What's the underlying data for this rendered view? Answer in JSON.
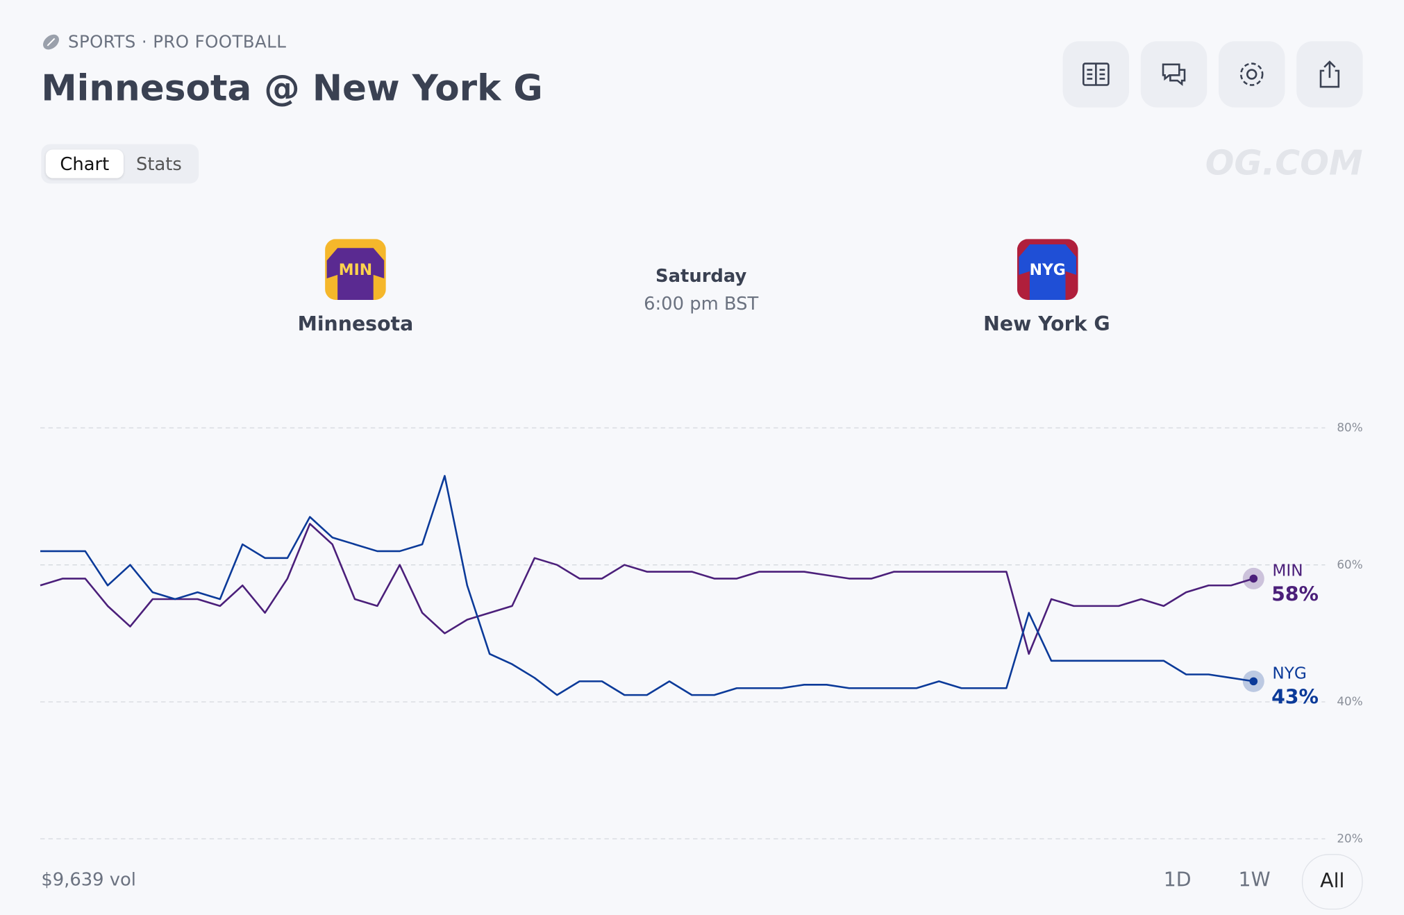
{
  "header": {
    "breadcrumb": "SPORTS · PRO FOOTBALL",
    "title": "Minnesota @ New York G",
    "watermark": "OG.COM"
  },
  "tabs": [
    "Chart",
    "Stats"
  ],
  "matchup": {
    "home": {
      "name": "Minnesota",
      "badge": "MIN"
    },
    "away": {
      "name": "New York G",
      "badge": "NYG"
    },
    "day": "Saturday",
    "time": "6:00 pm BST"
  },
  "chart_data": {
    "type": "line",
    "series": [
      {
        "name": "MIN",
        "color": "#4b1f7a",
        "values": [
          57,
          58,
          58,
          54,
          51,
          55,
          55,
          55,
          54,
          57,
          53,
          58,
          66,
          63,
          55,
          54,
          60,
          53,
          50,
          52,
          53,
          54,
          61,
          60,
          58,
          58,
          60,
          59,
          59,
          59,
          58,
          58,
          59,
          59,
          59,
          58.5,
          58,
          58,
          59,
          59,
          59,
          59,
          59,
          59,
          47,
          55,
          54,
          54,
          54,
          55,
          54,
          56,
          57,
          57,
          58
        ],
        "value_labels": [
          null,
          null,
          null,
          null,
          null,
          null,
          null,
          null,
          null,
          null,
          null,
          null,
          null,
          null,
          null,
          null,
          null,
          null,
          null,
          null,
          null,
          null,
          null,
          null,
          null,
          null,
          null,
          null,
          null,
          null,
          null,
          null,
          null,
          null,
          null,
          null,
          null,
          null,
          null,
          null,
          null,
          null,
          null,
          null,
          null,
          null,
          null,
          null,
          null,
          null,
          null,
          null,
          null,
          null,
          "58%"
        ]
      },
      {
        "name": "NYG",
        "color": "#0b3a99",
        "values": [
          62,
          62,
          62,
          57,
          60,
          56,
          55,
          56,
          55,
          63,
          61,
          61,
          67,
          64,
          63,
          62,
          62,
          63,
          73,
          57,
          47,
          45.5,
          43.5,
          41,
          43,
          43,
          41,
          41,
          43,
          41,
          41,
          42,
          42,
          42,
          42.5,
          42.5,
          42,
          42,
          42,
          42,
          43,
          42,
          42,
          42,
          53,
          46,
          46,
          46,
          46,
          46,
          46,
          44,
          44,
          43.5,
          43
        ],
        "value_labels": [
          null,
          null,
          null,
          null,
          null,
          null,
          null,
          null,
          null,
          null,
          null,
          null,
          null,
          null,
          null,
          null,
          null,
          null,
          null,
          null,
          null,
          null,
          null,
          null,
          null,
          null,
          null,
          null,
          null,
          null,
          null,
          null,
          null,
          null,
          null,
          null,
          null,
          null,
          null,
          null,
          null,
          null,
          null,
          null,
          null,
          null,
          null,
          null,
          null,
          null,
          null,
          null,
          null,
          null,
          "43%"
        ]
      }
    ],
    "ylim": [
      20,
      80
    ],
    "yticks": [
      {
        "value": 20,
        "label": "20%"
      },
      {
        "value": 40,
        "label": "40%"
      },
      {
        "value": 60,
        "label": "60%"
      },
      {
        "value": 80,
        "label": "80%"
      }
    ],
    "grid": true
  },
  "footer": {
    "volume": "$9,639 vol",
    "ranges": [
      "1D",
      "1W",
      "All"
    ]
  }
}
